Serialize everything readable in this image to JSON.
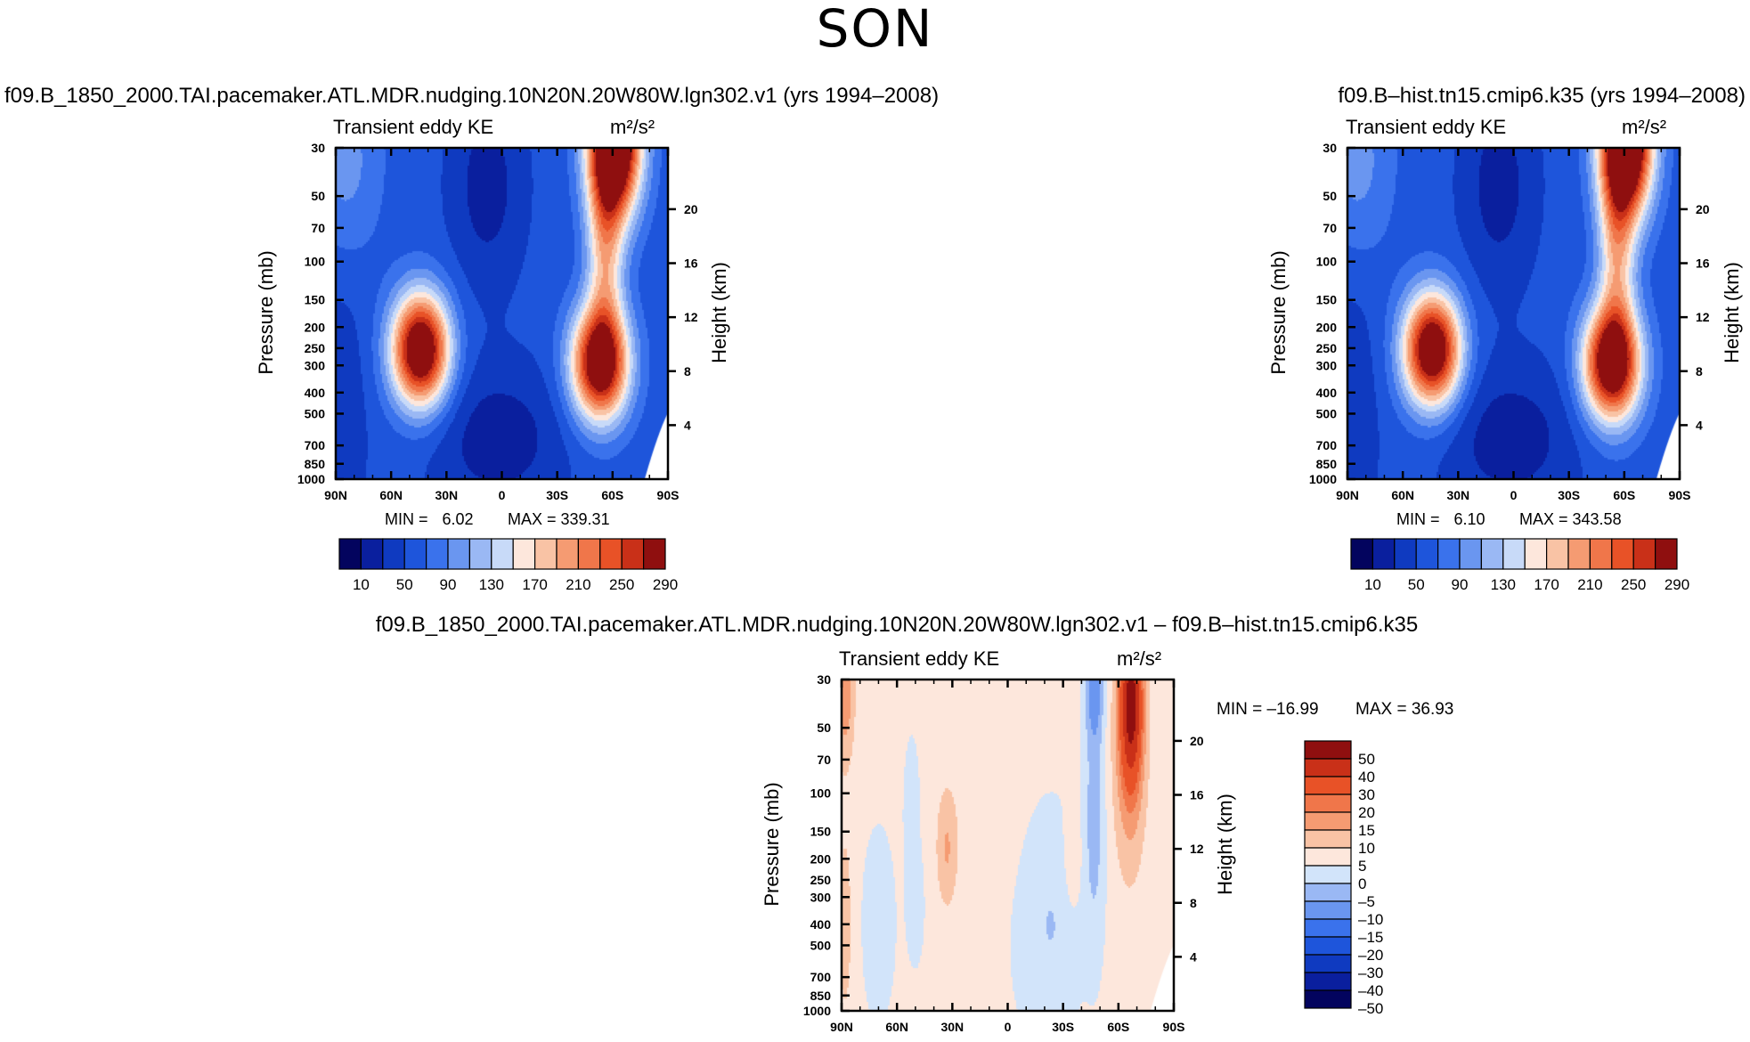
{
  "page": {
    "title": "SON"
  },
  "chart_data": [
    {
      "type": "heatmap",
      "subtype": "latitude-pressure contour",
      "run_title": "f09.B_1850_2000.TAI.pacemaker.ATL.MDR.nudging.10N20N.20W80W.lgn302.v1 (yrs 1994–2008)",
      "variable": "Transient eddy KE",
      "units": "m²/s²",
      "xlabel": "",
      "ylabel": "Pressure (mb)",
      "ylabel_right": "Height (km)",
      "x_ticks": [
        "90N",
        "60N",
        "30N",
        "0",
        "30S",
        "60S",
        "90S"
      ],
      "x_values": [
        90,
        60,
        30,
        0,
        -30,
        -60,
        -90
      ],
      "y_ticks": [
        30,
        50,
        70,
        100,
        150,
        200,
        250,
        300,
        400,
        500,
        700,
        850,
        1000
      ],
      "y_range": [
        30,
        1000
      ],
      "height_ticks": [
        20,
        16,
        12,
        8,
        4
      ],
      "min_label": "MIN =",
      "min_value": "6.02",
      "max_label": "MAX = 339.31",
      "colorbar_levels": [
        10,
        30,
        50,
        70,
        90,
        110,
        130,
        150,
        170,
        190,
        210,
        230,
        250,
        270,
        290
      ],
      "colorbar_labels": [
        "10",
        "50",
        "90",
        "130",
        "170",
        "210",
        "250",
        "290"
      ],
      "features": [
        {
          "lat": 42,
          "p": 260,
          "value": 320
        },
        {
          "lat": -55,
          "p": 290,
          "value": 290
        },
        {
          "lat": -60,
          "p": 30,
          "value": 330
        }
      ]
    },
    {
      "type": "heatmap",
      "subtype": "latitude-pressure contour",
      "run_title": "f09.B–hist.tn15.cmip6.k35 (yrs 1994–2008)",
      "variable": "Transient eddy KE",
      "units": "m²/s²",
      "xlabel": "",
      "ylabel": "Pressure (mb)",
      "ylabel_right": "Height (km)",
      "x_ticks": [
        "90N",
        "60N",
        "30N",
        "0",
        "30S",
        "60S",
        "90S"
      ],
      "x_values": [
        90,
        60,
        30,
        0,
        -30,
        -60,
        -90
      ],
      "y_ticks": [
        30,
        50,
        70,
        100,
        150,
        200,
        250,
        300,
        400,
        500,
        700,
        850,
        1000
      ],
      "y_range": [
        30,
        1000
      ],
      "height_ticks": [
        20,
        16,
        12,
        8,
        4
      ],
      "min_label": "MIN =",
      "min_value": "6.10",
      "max_label": "MAX = 343.58",
      "colorbar_levels": [
        10,
        30,
        50,
        70,
        90,
        110,
        130,
        150,
        170,
        190,
        210,
        230,
        250,
        270,
        290
      ],
      "colorbar_labels": [
        "10",
        "50",
        "90",
        "130",
        "170",
        "210",
        "250",
        "290"
      ],
      "features": [
        {
          "lat": 43,
          "p": 265,
          "value": 310
        },
        {
          "lat": -55,
          "p": 290,
          "value": 300
        },
        {
          "lat": -60,
          "p": 30,
          "value": 335
        }
      ]
    },
    {
      "type": "heatmap",
      "subtype": "latitude-pressure contour (difference)",
      "run_title": "f09.B_1850_2000.TAI.pacemaker.ATL.MDR.nudging.10N20N.20W80W.lgn302.v1 – f09.B–hist.tn15.cmip6.k35",
      "variable": "Transient eddy KE",
      "units": "m²/s²",
      "xlabel": "",
      "ylabel": "Pressure (mb)",
      "ylabel_right": "Height (km)",
      "x_ticks": [
        "90N",
        "60N",
        "30N",
        "0",
        "30S",
        "60S",
        "90S"
      ],
      "x_values": [
        90,
        60,
        30,
        0,
        -30,
        -60,
        -90
      ],
      "y_ticks": [
        30,
        50,
        70,
        100,
        150,
        200,
        250,
        300,
        400,
        500,
        700,
        850,
        1000
      ],
      "y_range": [
        30,
        1000
      ],
      "height_ticks": [
        20,
        16,
        12,
        8,
        4
      ],
      "min_label": "MIN = –16.99",
      "max_label": "MAX =  36.93",
      "colorbar_levels": [
        -50,
        -40,
        -30,
        -20,
        -15,
        -10,
        -5,
        0,
        5,
        10,
        15,
        20,
        30,
        40,
        50
      ],
      "colorbar_labels": [
        "50",
        "40",
        "30",
        "20",
        "15",
        "10",
        "5",
        "0",
        "–5",
        "–10",
        "–15",
        "–20",
        "–30",
        "–40",
        "–50"
      ],
      "features": [
        {
          "lat": -67,
          "p": 40,
          "value": 36.9
        },
        {
          "lat": -47,
          "p": 35,
          "value": -16.9
        },
        {
          "lat": 33,
          "p": 180,
          "value": 10
        },
        {
          "lat": 88,
          "p": 35,
          "value": 15
        }
      ]
    }
  ],
  "colors": {
    "kepal": [
      "#03045e",
      "#0a1f9e",
      "#0f3ac0",
      "#1e55db",
      "#3a72ec",
      "#6a96f0",
      "#9ab8f4",
      "#c8daf8",
      "#fde7dc",
      "#f9c3a5",
      "#f59b72",
      "#f0764a",
      "#e85227",
      "#c93018",
      "#8f0f0f"
    ],
    "diffpal": [
      "#03045e",
      "#0a1f9e",
      "#0f3ac0",
      "#1e55db",
      "#3a72ec",
      "#6a96f0",
      "#9ab8f4",
      "#d2e4fa",
      "#fde7dc",
      "#f9c3a5",
      "#f59b72",
      "#f0764a",
      "#e85227",
      "#c93018",
      "#8f0f0f"
    ],
    "missing": "#ffffff"
  }
}
